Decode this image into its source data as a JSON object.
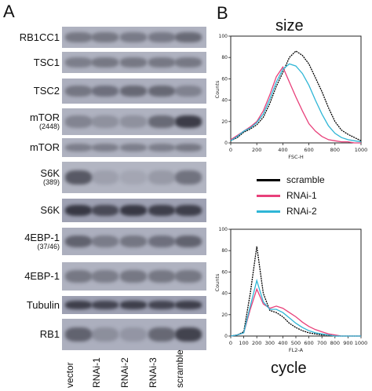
{
  "panel_a": {
    "letter": "A",
    "rows": [
      {
        "label": "RB1CC1",
        "sub": ""
      },
      {
        "label": "TSC1",
        "sub": ""
      },
      {
        "label": "TSC2",
        "sub": ""
      },
      {
        "label": "mTOR",
        "sub": "(2448)"
      },
      {
        "label": "mTOR",
        "sub": ""
      },
      {
        "label": "S6K",
        "sub": "(389)"
      },
      {
        "label": "S6K",
        "sub": ""
      },
      {
        "label": "4EBP-1",
        "sub": "(37/46)"
      },
      {
        "label": "4EBP-1",
        "sub": ""
      },
      {
        "label": "Tubulin",
        "sub": ""
      },
      {
        "label": "RB1",
        "sub": ""
      }
    ],
    "lanes": [
      "vector",
      "RNAi-1",
      "RNAi-2",
      "RNAi-3",
      "scramble"
    ],
    "band_intensity": [
      [
        0.45,
        0.45,
        0.42,
        0.44,
        0.55
      ],
      [
        0.4,
        0.45,
        0.45,
        0.45,
        0.45
      ],
      [
        0.45,
        0.5,
        0.55,
        0.55,
        0.35
      ],
      [
        0.35,
        0.25,
        0.25,
        0.55,
        0.9
      ],
      [
        0.4,
        0.4,
        0.4,
        0.4,
        0.45
      ],
      [
        0.7,
        0.15,
        0.1,
        0.2,
        0.5
      ],
      [
        0.9,
        0.75,
        0.9,
        0.85,
        0.85
      ],
      [
        0.6,
        0.4,
        0.45,
        0.5,
        0.6
      ],
      [
        0.45,
        0.4,
        0.45,
        0.45,
        0.45
      ],
      [
        0.85,
        0.8,
        0.85,
        0.8,
        0.85
      ],
      [
        0.6,
        0.25,
        0.2,
        0.55,
        0.85
      ]
    ]
  },
  "panel_b": {
    "letter": "B",
    "size_title": "size",
    "cycle_title": "cycle",
    "legend": [
      "scramble",
      "RNAi-1",
      "RNAi-2"
    ],
    "colors": {
      "scramble": "#000000",
      "RNAi-1": "#e8407a",
      "RNAi-2": "#2fb6d6"
    }
  },
  "chart_data": [
    {
      "type": "line",
      "title": "size",
      "xlabel": "FSC-H",
      "ylabel": "Counts",
      "xlim": [
        0,
        1000
      ],
      "ylim": [
        0,
        100
      ],
      "x_ticks": [
        0,
        200,
        400,
        600,
        800,
        1000
      ],
      "y_ticks": [
        0,
        20,
        40,
        60,
        80,
        100
      ],
      "x": [
        0,
        50,
        100,
        150,
        200,
        250,
        300,
        350,
        400,
        450,
        500,
        550,
        600,
        650,
        700,
        750,
        800,
        850,
        900,
        950,
        1000
      ],
      "series": [
        {
          "name": "scramble",
          "color": "#000000",
          "values": [
            2,
            5,
            10,
            13,
            17,
            24,
            37,
            53,
            66,
            80,
            86,
            82,
            74,
            61,
            48,
            33,
            20,
            12,
            8,
            5,
            2
          ]
        },
        {
          "name": "RNAi-1",
          "color": "#e8407a",
          "values": [
            3,
            7,
            11,
            15,
            20,
            30,
            45,
            62,
            71,
            57,
            43,
            30,
            18,
            11,
            6,
            3,
            2,
            1,
            1,
            0,
            0
          ]
        },
        {
          "name": "RNAi-2",
          "color": "#2fb6d6",
          "values": [
            2,
            6,
            11,
            14,
            19,
            27,
            41,
            57,
            69,
            74,
            72,
            65,
            54,
            40,
            27,
            16,
            9,
            5,
            3,
            2,
            1
          ]
        }
      ]
    },
    {
      "type": "line",
      "title": "cycle",
      "xlabel": "FL2-A",
      "ylabel": "Counts",
      "xlim": [
        0,
        1000
      ],
      "ylim": [
        0,
        100
      ],
      "x_ticks": [
        0,
        100,
        200,
        300,
        400,
        500,
        600,
        700,
        800,
        900,
        1000
      ],
      "y_ticks": [
        0,
        20,
        40,
        60,
        80,
        100
      ],
      "x": [
        0,
        50,
        100,
        150,
        200,
        250,
        300,
        350,
        400,
        450,
        500,
        550,
        600,
        650,
        700,
        750,
        800,
        850,
        900,
        950,
        1000
      ],
      "series": [
        {
          "name": "scramble",
          "color": "#000000",
          "values": [
            0,
            1,
            4,
            40,
            84,
            40,
            24,
            22,
            18,
            12,
            8,
            5,
            3,
            2,
            1,
            1,
            0,
            0,
            0,
            0,
            0
          ]
        },
        {
          "name": "RNAi-1",
          "color": "#e8407a",
          "values": [
            0,
            1,
            3,
            25,
            44,
            30,
            26,
            28,
            26,
            22,
            18,
            13,
            9,
            6,
            4,
            2,
            1,
            0,
            0,
            0,
            0
          ]
        },
        {
          "name": "RNAi-2",
          "color": "#2fb6d6",
          "values": [
            0,
            1,
            3,
            28,
            52,
            32,
            25,
            25,
            22,
            17,
            12,
            8,
            5,
            3,
            2,
            1,
            0,
            0,
            0,
            0,
            0
          ]
        }
      ]
    }
  ]
}
